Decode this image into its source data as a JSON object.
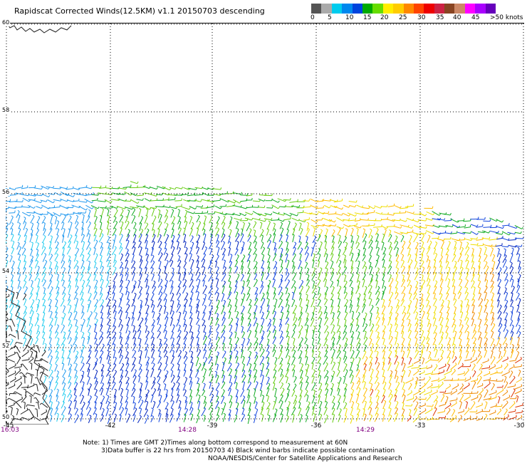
{
  "title": "Rapidscat Corrected Winds(12.5KM) v1.1 20150703 descending",
  "scale": {
    "colors": [
      "#555555",
      "#aaaaaa",
      "#00ccee",
      "#0088ee",
      "#0044dd",
      "#00aa00",
      "#66dd00",
      "#ffee00",
      "#ffcc00",
      "#ff8800",
      "#ff4400",
      "#ee0000",
      "#cc2244",
      "#884422",
      "#cc8866",
      "#ff00ff",
      "#aa00ff",
      "#6600bb"
    ],
    "labels": [
      "0",
      "5",
      "10",
      "15",
      "20",
      "25",
      "30",
      "35",
      "40",
      "45",
      ">50 knots"
    ]
  },
  "latitudes": [
    "60",
    "58",
    "56",
    "54",
    "52",
    "50"
  ],
  "longitudes": [
    "-45",
    "-42",
    "-39",
    "-36",
    "-33",
    "-30"
  ],
  "times": [
    "16:03",
    "14:28",
    "14:29"
  ],
  "notes": [
    "Note: 1) Times are GMT 2)Times along bottom correspond to measurement at 60N",
    "3)Data buffer is 22 hrs from 20150703 4) Black wind barbs indicate possible contamination",
    "NOAA/NESDIS/Center for Satellite Applications and Research"
  ],
  "wind_colors": {
    "cyan": "#22ccee",
    "light_blue": "#2299ee",
    "blue": "#1144dd",
    "dark_blue": "#0022bb",
    "green": "#11aa22",
    "light_green": "#66cc11",
    "yellow": "#eedd00",
    "gold": "#ffbb00",
    "orange": "#ee8800",
    "red": "#dd3300",
    "black": "#222222"
  }
}
